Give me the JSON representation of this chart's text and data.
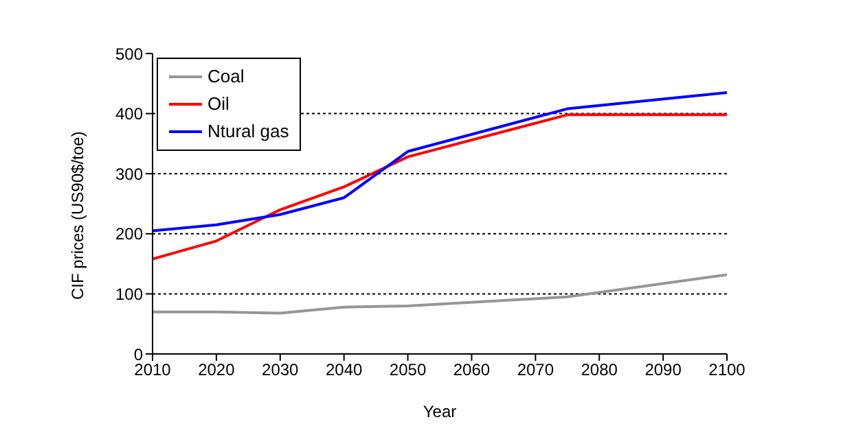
{
  "chart_data": {
    "type": "line",
    "xlabel": "Year",
    "ylabel": "CIF prices (US90$/toe)",
    "x": [
      2010,
      2020,
      2030,
      2040,
      2050,
      2075,
      2100
    ],
    "series": [
      {
        "name": "Coal",
        "color": "#969696",
        "values": [
          70,
          70,
          68,
          78,
          80,
          95,
          132
        ]
      },
      {
        "name": "Oil",
        "color": "#ff0000",
        "values": [
          158,
          188,
          240,
          278,
          328,
          398,
          398
        ]
      },
      {
        "name": "Ntural gas",
        "color": "#0000ff",
        "values": [
          205,
          215,
          232,
          260,
          337,
          408,
          435
        ]
      }
    ],
    "xlim": [
      2010,
      2100
    ],
    "xticks": [
      2010,
      2020,
      2030,
      2040,
      2050,
      2060,
      2070,
      2080,
      2090,
      2100
    ],
    "ylim": [
      0,
      500
    ],
    "yticks": [
      0,
      100,
      200,
      300,
      400,
      500
    ],
    "grid": "y",
    "legend": "top left",
    "marker": "none",
    "line_style": "solid"
  }
}
